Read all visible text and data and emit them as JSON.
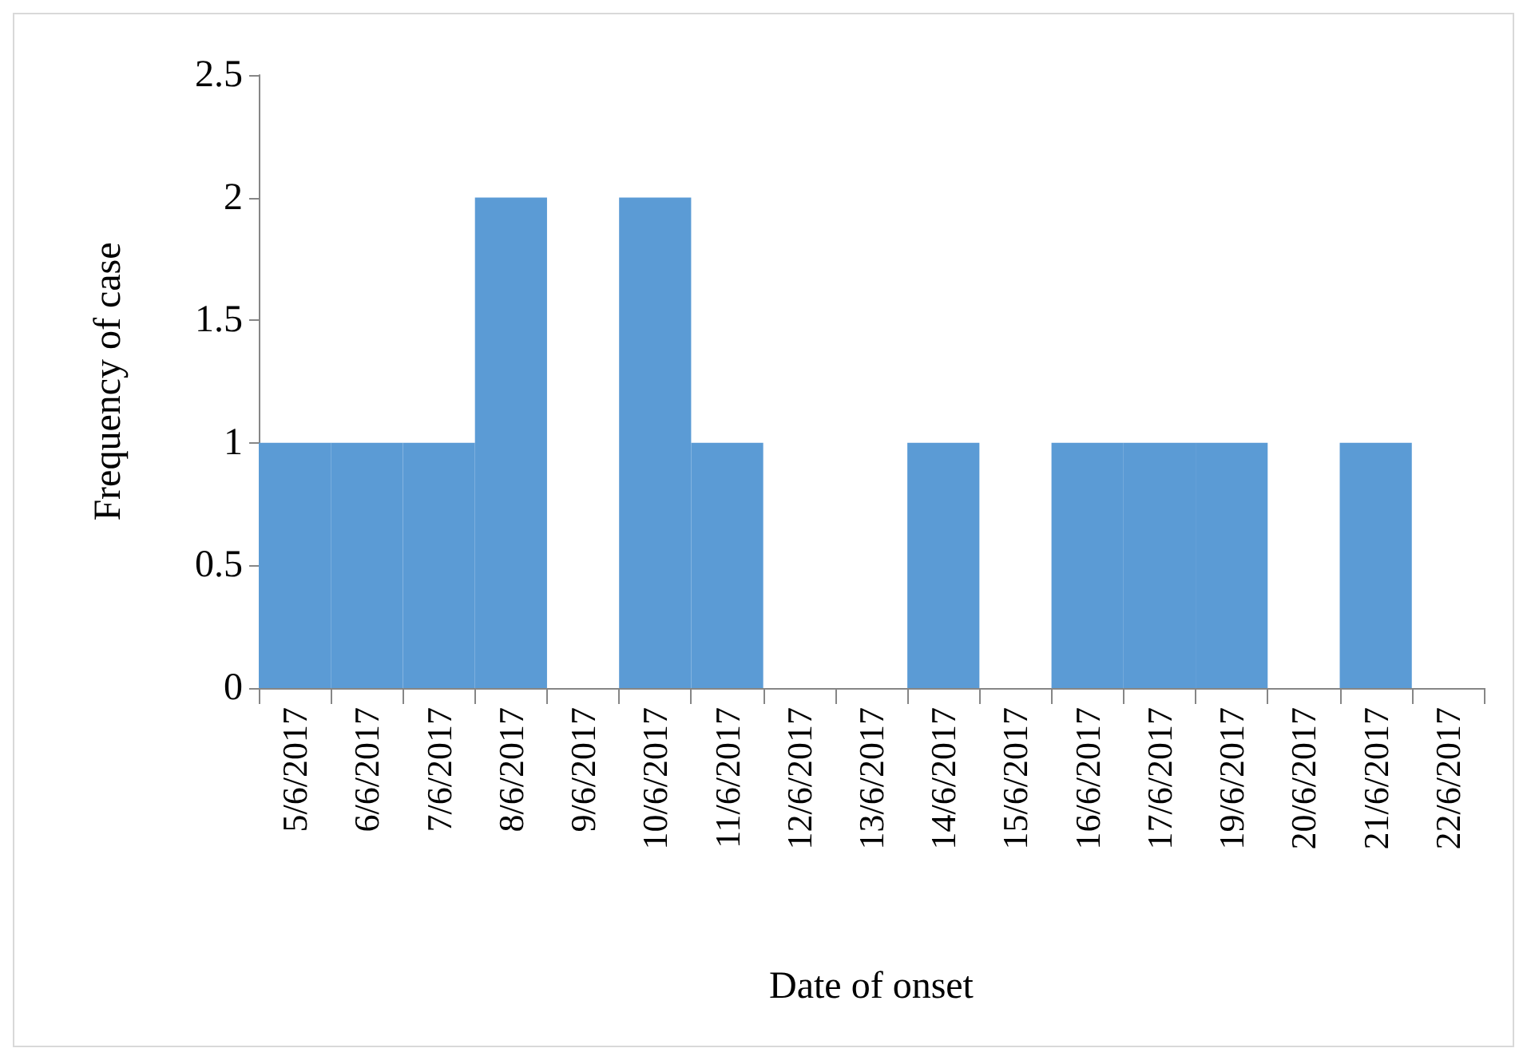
{
  "chart_data": {
    "type": "bar",
    "xlabel": "Date of onset",
    "ylabel": "Frequency of case",
    "categories": [
      "5/6/2017",
      "6/6/2017",
      "7/6/2017",
      "8/6/2017",
      "9/6/2017",
      "10/6/2017",
      "11/6/2017",
      "12/6/2017",
      "13/6/2017",
      "14/6/2017",
      "15/6/2017",
      "16/6/2017",
      "17/6/2017",
      "19/6/2017",
      "20/6/2017",
      "21/6/2017",
      "22/6/2017"
    ],
    "values": [
      1,
      1,
      1,
      2,
      0,
      2,
      1,
      0,
      0,
      1,
      0,
      1,
      1,
      1,
      0,
      1,
      0
    ],
    "color": "#5b9bd5",
    "ylim": [
      0,
      2.5
    ],
    "yticks": [
      0,
      0.5,
      1,
      1.5,
      2,
      2.5
    ],
    "grid": false
  }
}
